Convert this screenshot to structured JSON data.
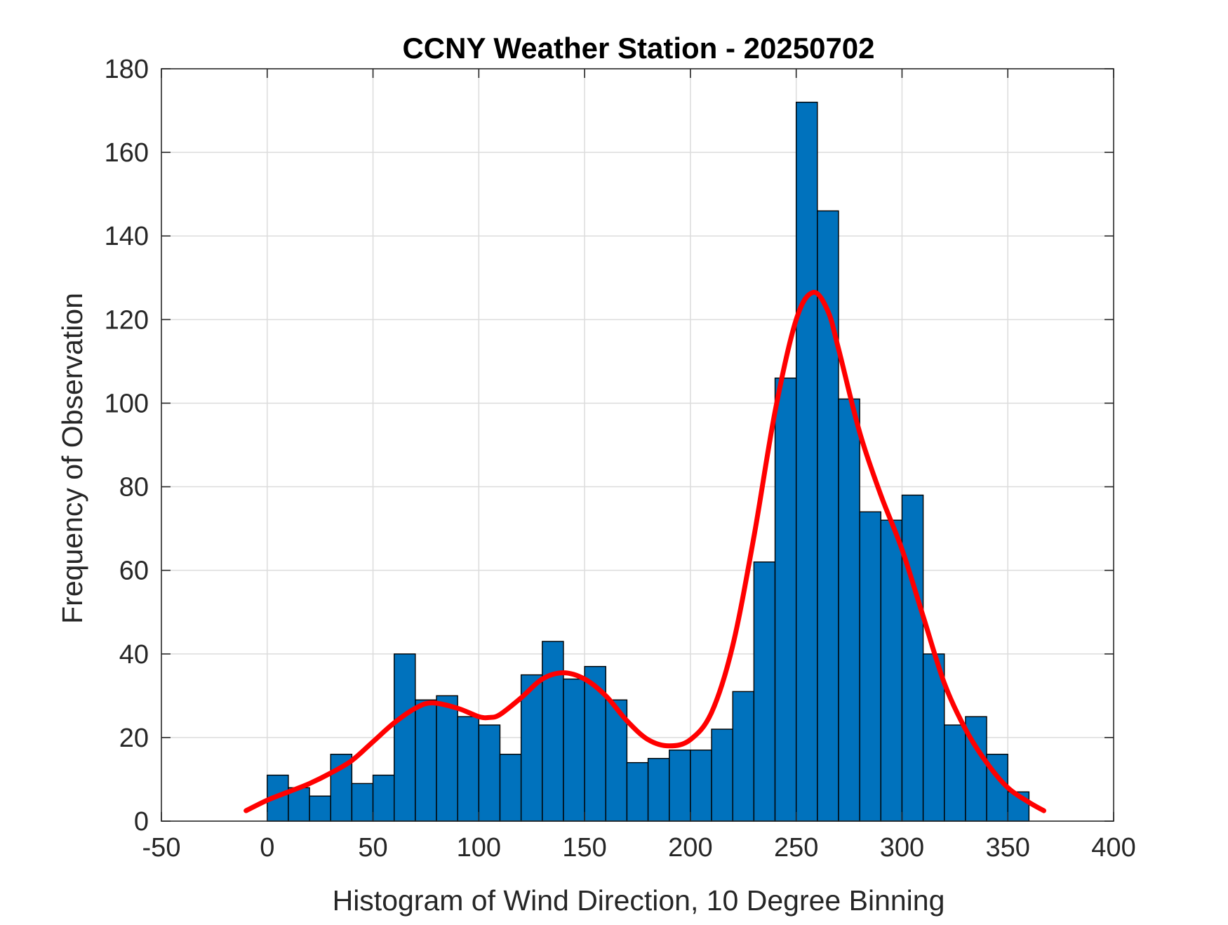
{
  "chart_data": {
    "type": "bar",
    "title": "CCNY Weather Station - 20250702",
    "xlabel": "Histogram of Wind Direction, 10 Degree Binning",
    "ylabel": "Frequency of Observation",
    "xlim": [
      -50,
      400
    ],
    "ylim": [
      0,
      180
    ],
    "xticks": [
      -50,
      0,
      50,
      100,
      150,
      200,
      250,
      300,
      350,
      400
    ],
    "yticks": [
      0,
      20,
      40,
      60,
      80,
      100,
      120,
      140,
      160,
      180
    ],
    "grid": true,
    "bin_width": 10,
    "bin_edges_start": [
      0,
      10,
      20,
      30,
      40,
      50,
      60,
      70,
      80,
      90,
      100,
      110,
      120,
      130,
      140,
      150,
      160,
      170,
      180,
      190,
      200,
      210,
      220,
      230,
      240,
      250,
      260,
      270,
      280,
      290,
      300,
      310,
      320,
      330,
      340,
      350
    ],
    "values": [
      11,
      8,
      6,
      16,
      9,
      11,
      40,
      29,
      30,
      25,
      23,
      16,
      35,
      43,
      34,
      37,
      29,
      14,
      15,
      17,
      17,
      22,
      31,
      62,
      106,
      172,
      146,
      101,
      74,
      72,
      78,
      40,
      23,
      25,
      16,
      7
    ],
    "series": [
      {
        "name": "histogram",
        "kind": "bar",
        "color": "#0072BD"
      },
      {
        "name": "fitted density curve",
        "kind": "line",
        "color": "#FF0000",
        "x": [
          -10,
          0,
          10,
          20,
          30,
          40,
          50,
          60,
          70,
          78,
          90,
          100,
          105,
          110,
          120,
          130,
          140,
          150,
          160,
          170,
          180,
          190,
          200,
          210,
          220,
          230,
          240,
          250,
          258,
          265,
          270,
          280,
          290,
          300,
          310,
          320,
          330,
          340,
          350,
          360,
          367
        ],
        "y": [
          2.5,
          5,
          7,
          9,
          11.5,
          14.5,
          19,
          23.5,
          27,
          28.3,
          27,
          25,
          24.8,
          25.5,
          29.5,
          34,
          35.5,
          34,
          30,
          24,
          19.5,
          18,
          19.5,
          26,
          42,
          68,
          98,
          120,
          126.5,
          122,
          113,
          93,
          78,
          65,
          49,
          33,
          22,
          14,
          8,
          4.5,
          2.5
        ]
      }
    ]
  }
}
